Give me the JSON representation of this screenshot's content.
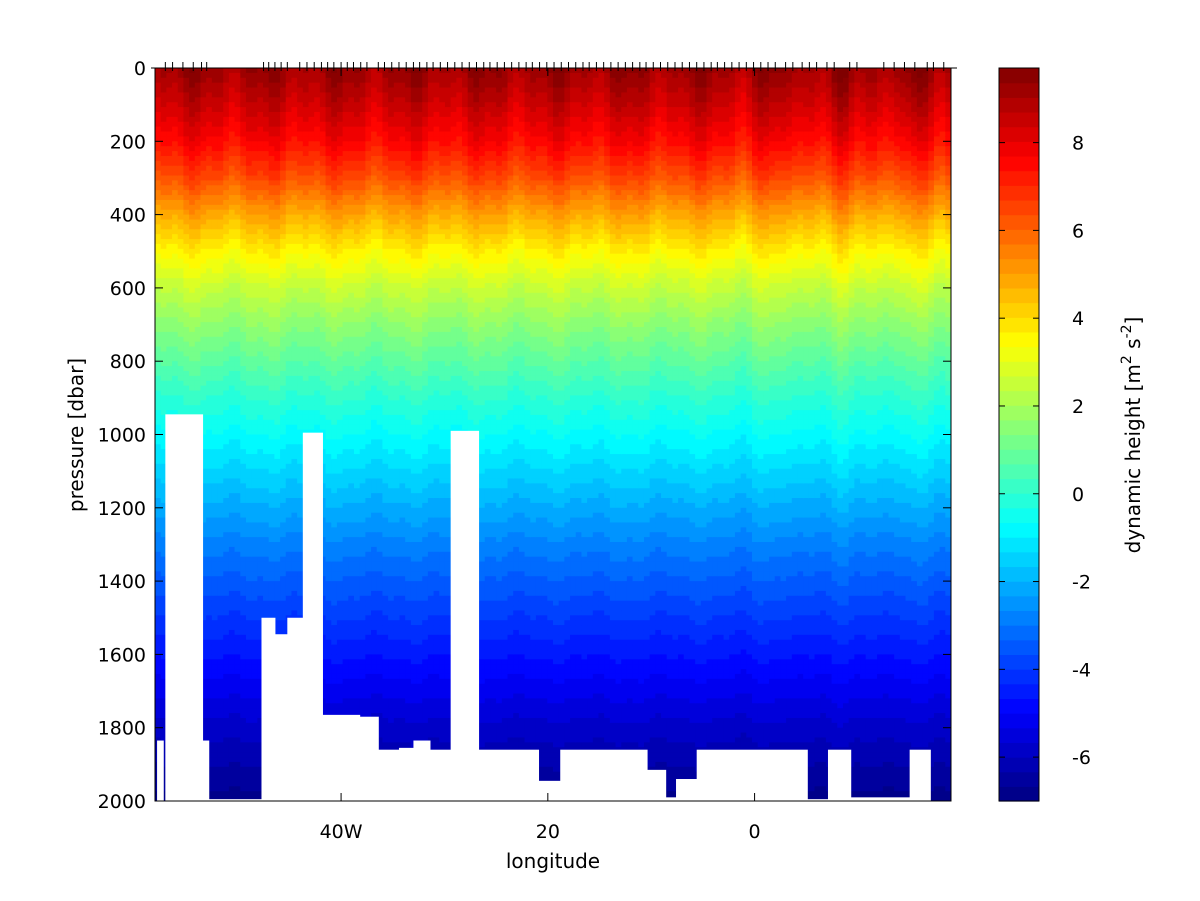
{
  "chart_data": {
    "type": "heatmap",
    "title": "",
    "xlabel": "longitude",
    "ylabel": "pressure [dbar]",
    "colorbar_label_parts": [
      "dynamic height [m",
      "2",
      " s",
      "-2",
      "]"
    ],
    "xlim": [
      -58,
      19
    ],
    "ylim": [
      0,
      2000
    ],
    "y_reversed": true,
    "x_ticks": [
      -40,
      -20,
      0
    ],
    "x_tick_labels": [
      "40W",
      "20",
      "0"
    ],
    "y_ticks": [
      0,
      200,
      400,
      600,
      800,
      1000,
      1200,
      1400,
      1600,
      1800,
      2000
    ],
    "y_tick_labels": [
      "0",
      "200",
      "400",
      "600",
      "800",
      "1000",
      "1200",
      "1400",
      "1600",
      "1800",
      "2000"
    ],
    "colorbar_range": [
      -7,
      9.7
    ],
    "colorbar_ticks": [
      -6,
      -4,
      -2,
      0,
      2,
      4,
      6,
      8
    ],
    "colorbar_tick_labels": [
      "-6",
      "-4",
      "-2",
      "0",
      "2",
      "4",
      "6",
      "8"
    ],
    "colormap": "jet",
    "contour_levels": 50,
    "profile": {
      "pressure": [
        0,
        100,
        200,
        300,
        400,
        500,
        600,
        700,
        800,
        900,
        1000,
        1100,
        1200,
        1300,
        1400,
        1500,
        1600,
        1700,
        1800,
        1900,
        2000
      ],
      "dynamic_height": [
        9.3,
        8.5,
        7.6,
        6.4,
        4.9,
        3.6,
        2.5,
        1.6,
        0.8,
        0.0,
        -0.7,
        -1.4,
        -2.1,
        -2.8,
        -3.4,
        -4.0,
        -4.6,
        -5.2,
        -5.8,
        -6.3,
        -6.8
      ]
    },
    "station_longitudes": [
      -57,
      -56.3,
      -55.3,
      -54.3,
      -53.5,
      -53,
      -47.5,
      -47,
      -46.4,
      -45.8,
      -45.2,
      -44,
      -43.3,
      -42.6,
      -41.9,
      -41.3,
      -40.7,
      -40,
      -39.4,
      -38.8,
      -38.1,
      -37.5,
      -36.4,
      -35.8,
      -35.1,
      -34.4,
      -33.7,
      -33,
      -32.4,
      -31.7,
      -31.1,
      -30.4,
      -29.7,
      -29,
      -28.3,
      -27.6,
      -26.9,
      -26.2,
      -25.6,
      -24.9,
      -24.2,
      -23.5,
      -22.8,
      -22.1,
      -21.5,
      -20.8,
      -20.1,
      -19.4,
      -18.7,
      -18,
      -17.3,
      -16.6,
      -16,
      -15.3,
      -14.6,
      -13.9,
      -13.2,
      -12.5,
      -11.8,
      -11.1,
      -10.5,
      -9.8,
      -9.1,
      -8.4,
      -7.7,
      -7,
      -6.3,
      -5.6,
      -4.9,
      -4.2,
      -3.6,
      -2.9,
      -2.2,
      -1.5,
      -0.8,
      -0.1,
      0.6,
      1.3,
      2.0,
      3.0,
      3.7,
      4.6,
      5.3,
      6.0,
      7.0,
      7.7,
      9.2,
      9.9,
      12.5,
      13.5,
      14.5,
      15.5,
      16.7,
      17.3,
      18.3
    ],
    "bottom_mask": [
      {
        "x": [
          -57.8,
          -57.2
        ],
        "depth": 1835
      },
      {
        "x": [
          -57.0,
          -53.4
        ],
        "depth": 945
      },
      {
        "x": [
          -53.4,
          -52.8
        ],
        "depth": 1835
      },
      {
        "x": [
          -52.8,
          -47.7
        ],
        "depth": 1995
      },
      {
        "x": [
          -47.7,
          -46.4
        ],
        "depth": 1500
      },
      {
        "x": [
          -46.4,
          -45.2
        ],
        "depth": 1545
      },
      {
        "x": [
          -45.2,
          -43.7
        ],
        "depth": 1500
      },
      {
        "x": [
          -43.7,
          -41.8
        ],
        "depth": 995
      },
      {
        "x": [
          -41.8,
          -38.2
        ],
        "depth": 1765
      },
      {
        "x": [
          -38.2,
          -36.4
        ],
        "depth": 1770
      },
      {
        "x": [
          -36.4,
          -34.4
        ],
        "depth": 1860
      },
      {
        "x": [
          -34.4,
          -33.0
        ],
        "depth": 1855
      },
      {
        "x": [
          -33.0,
          -31.4
        ],
        "depth": 1835
      },
      {
        "x": [
          -31.4,
          -29.4
        ],
        "depth": 1860
      },
      {
        "x": [
          -29.4,
          -26.7
        ],
        "depth": 990
      },
      {
        "x": [
          -26.7,
          -20.9
        ],
        "depth": 1860
      },
      {
        "x": [
          -20.9,
          -18.8
        ],
        "depth": 1945
      },
      {
        "x": [
          -18.8,
          -10.4
        ],
        "depth": 1860
      },
      {
        "x": [
          -10.4,
          -8.6
        ],
        "depth": 1915
      },
      {
        "x": [
          -8.6,
          -7.6
        ],
        "depth": 1990
      },
      {
        "x": [
          -7.6,
          -5.6
        ],
        "depth": 1940
      },
      {
        "x": [
          -5.6,
          5.1
        ],
        "depth": 1860
      },
      {
        "x": [
          5.1,
          7.1
        ],
        "depth": 1995
      },
      {
        "x": [
          7.1,
          9.3
        ],
        "depth": 1860
      },
      {
        "x": [
          9.3,
          15.0
        ],
        "depth": 1990
      },
      {
        "x": [
          15.0,
          17.0
        ],
        "depth": 1860
      },
      {
        "x": [
          17.0,
          19.0
        ],
        "depth": 2000
      }
    ]
  }
}
